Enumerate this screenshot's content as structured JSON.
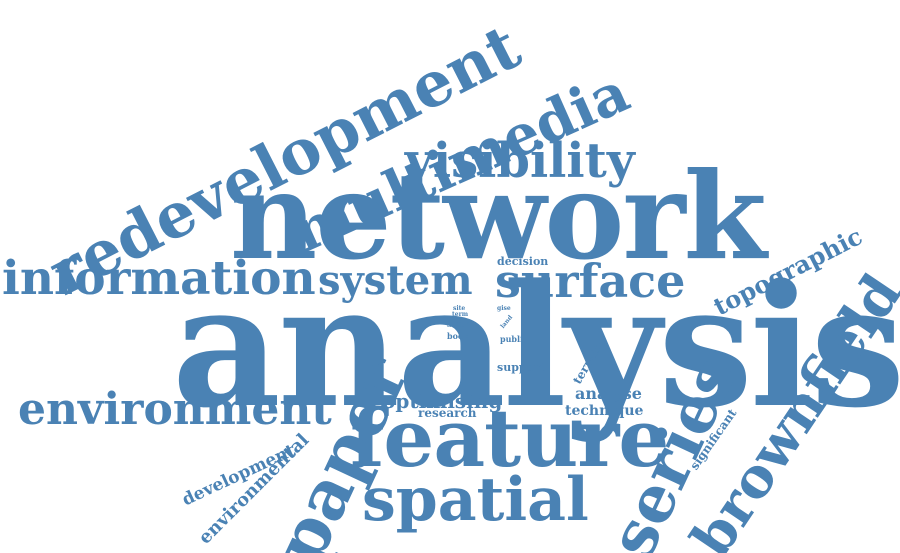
{
  "colors": {
    "word": "#4a82b4",
    "background": "#ffffff"
  },
  "words": [
    "redevelopment",
    "multimedia",
    "visibility",
    "network",
    "information",
    "system",
    "surface",
    "topographic",
    "analysis",
    "brownfield",
    "environment",
    "optimising",
    "research",
    "analyse",
    "technique",
    "feature",
    "paper",
    "series",
    "spatial",
    "development",
    "environmental",
    "significant",
    "decision",
    "term",
    "site",
    "short",
    "book",
    "gise",
    "land",
    "public",
    "support",
    "terrain"
  ]
}
